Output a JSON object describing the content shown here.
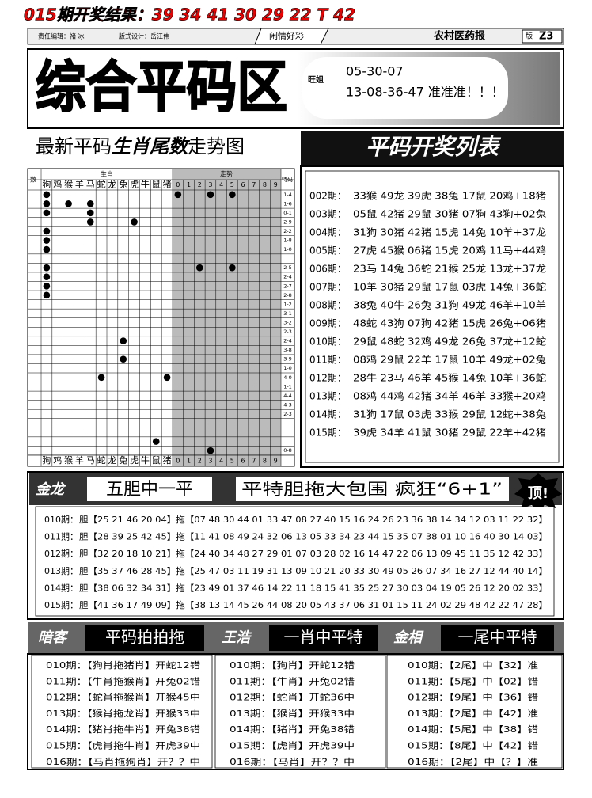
{
  "header": {
    "result": "015期开奖结果：39 34 41 30 29 22 T 42",
    "editor": "责任编辑：褚 冰",
    "designer": "版式设计：岳江伟",
    "column": "闲情好彩",
    "paper": "农村医药报",
    "edition": "版",
    "page": "Z3"
  },
  "banner": {
    "title": "综合平码区",
    "author": "旺姐",
    "line1": "05-30-07",
    "line2": "13-08-36-47 准准准！！！"
  },
  "trend": {
    "title": [
      "最新平码",
      "生肖尾数",
      "走势图"
    ],
    "left_header": "数",
    "right_header": "特码",
    "group_animals": "生肖",
    "group_digits": "走势",
    "animals": [
      "狗",
      "鸡",
      "猴",
      "羊",
      "马",
      "蛇",
      "龙",
      "兔",
      "虎",
      "牛",
      "鼠",
      "猪"
    ],
    "digits": [
      "0",
      "1",
      "2",
      "3",
      "4",
      "5",
      "6",
      "7",
      "8",
      "9"
    ],
    "rows": [
      {
        "code": "1-4",
        "dots": [
          0,
          12,
          15,
          17
        ]
      },
      {
        "code": "1-6",
        "dots": [
          0,
          2,
          4
        ]
      },
      {
        "code": "0-1",
        "dots": [
          0,
          4
        ]
      },
      {
        "code": "2-9",
        "dots": [
          4,
          8
        ]
      },
      {
        "code": "2-2",
        "dots": [
          0
        ]
      },
      {
        "code": "1-8",
        "dots": [
          0
        ]
      },
      {
        "code": "1-0",
        "dots": [
          0
        ]
      },
      {
        "code": null
      },
      {
        "code": "2-5",
        "dots": [
          0,
          14,
          17
        ]
      },
      {
        "code": "2-4",
        "dots": [
          0
        ]
      },
      {
        "code": "2-7",
        "dots": [
          0
        ]
      },
      {
        "code": "2-8",
        "dots": [
          0
        ]
      },
      {
        "code": "1-2"
      },
      {
        "code": "3-1"
      },
      {
        "code": "3-2"
      },
      {
        "code": "2-3"
      },
      {
        "code": "2-4",
        "dots": [
          7
        ]
      },
      {
        "code": "3-8"
      },
      {
        "code": "3-9",
        "dots": [
          7
        ]
      },
      {
        "code": "1-0"
      },
      {
        "code": "4-0",
        "dots": [
          5,
          11
        ]
      },
      {
        "code": "1-1"
      },
      {
        "code": "4-4"
      },
      {
        "code": "4-3"
      },
      {
        "code": "2-3"
      },
      {
        "code": null
      },
      {
        "code": null
      },
      {
        "code": null,
        "dots": [
          10
        ]
      },
      {
        "code": "0-8",
        "dots": [
          15
        ]
      }
    ]
  },
  "draws": {
    "title": "平码开奖列表",
    "rows": [
      {
        "period": "002期：",
        "result": "33猴 49龙 39虎 38兔 17鼠 20鸡+18猪"
      },
      {
        "period": "003期：",
        "result": "05鼠 42猪 29鼠 30猪 07狗 43狗+02兔"
      },
      {
        "period": "004期：",
        "result": "31狗 30猪 42猪 15虎 14兔 10羊+37龙"
      },
      {
        "period": "005期：",
        "result": "27虎 45猴 06猪 15虎 20鸡 11马+44鸡"
      },
      {
        "period": "006期：",
        "result": "23马 14兔 36蛇 21猴 25龙 13龙+37龙"
      },
      {
        "period": "007期：",
        "result": "10羊 30猪 29鼠 17鼠 03虎 14兔+36蛇"
      },
      {
        "period": "008期：",
        "result": "38兔 40牛 26兔 31狗 49龙 46羊+10羊"
      },
      {
        "period": "009期：",
        "result": "48蛇 43狗 07狗 42猪 15虎 26兔+06猪"
      },
      {
        "period": "010期：",
        "result": "29鼠 48蛇 32鸡 49龙 26兔 37龙+12蛇"
      },
      {
        "period": "011期：",
        "result": "08鸡 29鼠 22羊 17鼠 10羊 49龙+02兔"
      },
      {
        "period": "012期：",
        "result": "28牛 23马 46羊 45猴 14兔 10羊+36蛇"
      },
      {
        "period": "013期：",
        "result": "08鸡 44鸡 42猪 34羊 46羊 33猴+20鸡"
      },
      {
        "period": "014期：",
        "result": "31狗 17鼠 03虎 33猴 29鼠 12蛇+38兔"
      },
      {
        "period": "015期：",
        "result": "39虎 34羊 41鼠 30猪 29鼠 22羊+42猪"
      }
    ]
  },
  "dantuo": {
    "author": "金龙",
    "title": "五胆中一平",
    "slogan": "平特胆拖大包围 疯狂“6+1”",
    "badge": "顶!",
    "rows": [
      {
        "period": "010期：",
        "line": "胆【25 21 46 20 04】拖【07 48 30 44 01 33 47 08 27 40 15 16 24 26 23 36 38 14 34 12 03 11 22 32】"
      },
      {
        "period": "011期：",
        "line": "胆【28 39 25 42 45】拖【11 41 08 49 24 32 06 13 05 33 34 23 44 15 35 07 38 01 10 16 40 30 14 03】"
      },
      {
        "period": "012期：",
        "line": "胆【32 20 18 10 21】拖【24 40 34 48 27 29 01 07 03 28 02 16 14 47 22 06 13 09 45 11 35 12 42 33】"
      },
      {
        "period": "013期：",
        "line": "胆【35 37 46 28 45】拖【25 47 03 11 19 31 13 09 10 21 20 33 30 49 05 26 07 34 16 27 12 44 40 14】"
      },
      {
        "period": "014期：",
        "line": "胆【38 06 32 34 31】拖【23 49 01 37 46 14 22 11 18 15 41 35 25 27 30 03 04 19 05 26 12 20 02 33】"
      },
      {
        "period": "015期：",
        "line": "胆【41 36 17 49 09】拖【38 13 14 45 26 44 08 20 05 43 37 06 31 01 15 11 24 02 29 48 42 22 47 28】"
      }
    ]
  },
  "picks": [
    {
      "author": "暗客",
      "title": "平码拍拍拖",
      "rows": [
        "010期：【狗肖拖猪肖】开蛇12错",
        "011期：【牛肖拖猴肖】开兔02错",
        "012期：【蛇肖拖猴肖】开猴45中",
        "013期：【猴肖拖龙肖】开猴33中",
        "014期：【猪肖拖牛肖】开兔38错",
        "015期：【虎肖拖牛肖】开虎39中",
        "016期：【马肖拖狗肖】开？？中"
      ]
    },
    {
      "author": "王浩",
      "title": "一肖中平特",
      "rows": [
        "010期：【狗肖】开蛇12错",
        "011期：【牛肖】开兔02错",
        "012期：【蛇肖】开蛇36中",
        "013期：【猴肖】开猴33中",
        "014期：【猪肖】开兔38错",
        "015期：【虎肖】开虎39中",
        "016期：【马肖】开？？中"
      ]
    },
    {
      "author": "金相",
      "title": "一尾中平特",
      "rows": [
        "010期：【2尾】中【32】准",
        "011期：【5尾】中【02】错",
        "012期：【9尾】中【36】错",
        "013期：【2尾】中【42】准",
        "014期：【5尾】中【38】错",
        "015期：【8尾】中【42】错",
        "016期：【2尾】中【？】准"
      ]
    }
  ]
}
